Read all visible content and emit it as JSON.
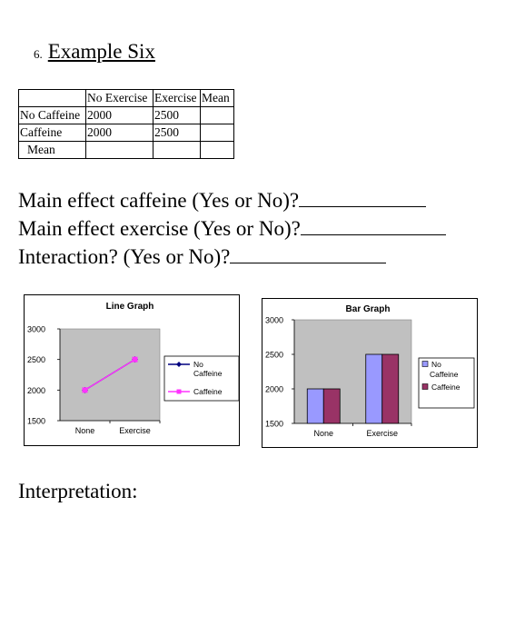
{
  "heading": {
    "number": "6.",
    "title": "Example Six"
  },
  "table": {
    "header": [
      "",
      "No Exercise",
      "Exercise",
      "Mean"
    ],
    "rows": [
      [
        "No Caffeine",
        "2000",
        "2500",
        ""
      ],
      [
        "Caffeine",
        "2000",
        "2500",
        ""
      ],
      [
        "Mean",
        "",
        "",
        ""
      ]
    ]
  },
  "questions": [
    "Main effect caffeine (Yes or No)?",
    "Main effect exercise (Yes or No)?",
    "Interaction? (Yes or No)?"
  ],
  "interpretation_label": "Interpretation:",
  "chart_data": [
    {
      "type": "line",
      "title": "Line Graph",
      "categories": [
        "None",
        "Exercise"
      ],
      "series": [
        {
          "name": "No Caffeine",
          "values": [
            2000,
            2500
          ],
          "color": "#000080",
          "marker": "diamond"
        },
        {
          "name": "Caffeine",
          "values": [
            2000,
            2500
          ],
          "color": "#ff33ff",
          "marker": "square"
        }
      ],
      "ylim": [
        1500,
        3000
      ],
      "yticks": [
        "1500",
        "2000",
        "2500",
        "3000"
      ],
      "plot_bg": "#c0c0c0",
      "legend": "right",
      "grid": false
    },
    {
      "type": "bar",
      "title": "Bar Graph",
      "categories": [
        "None",
        "Exercise"
      ],
      "series": [
        {
          "name": "No Caffeine",
          "values": [
            2000,
            2500
          ],
          "color": "#9999ff"
        },
        {
          "name": "Caffeine",
          "values": [
            2000,
            2500
          ],
          "color": "#993366"
        }
      ],
      "ylim": [
        1500,
        3000
      ],
      "yticks": [
        "1500",
        "2000",
        "2500",
        "3000"
      ],
      "plot_bg": "#c0c0c0",
      "legend": "right",
      "grid": false
    }
  ]
}
